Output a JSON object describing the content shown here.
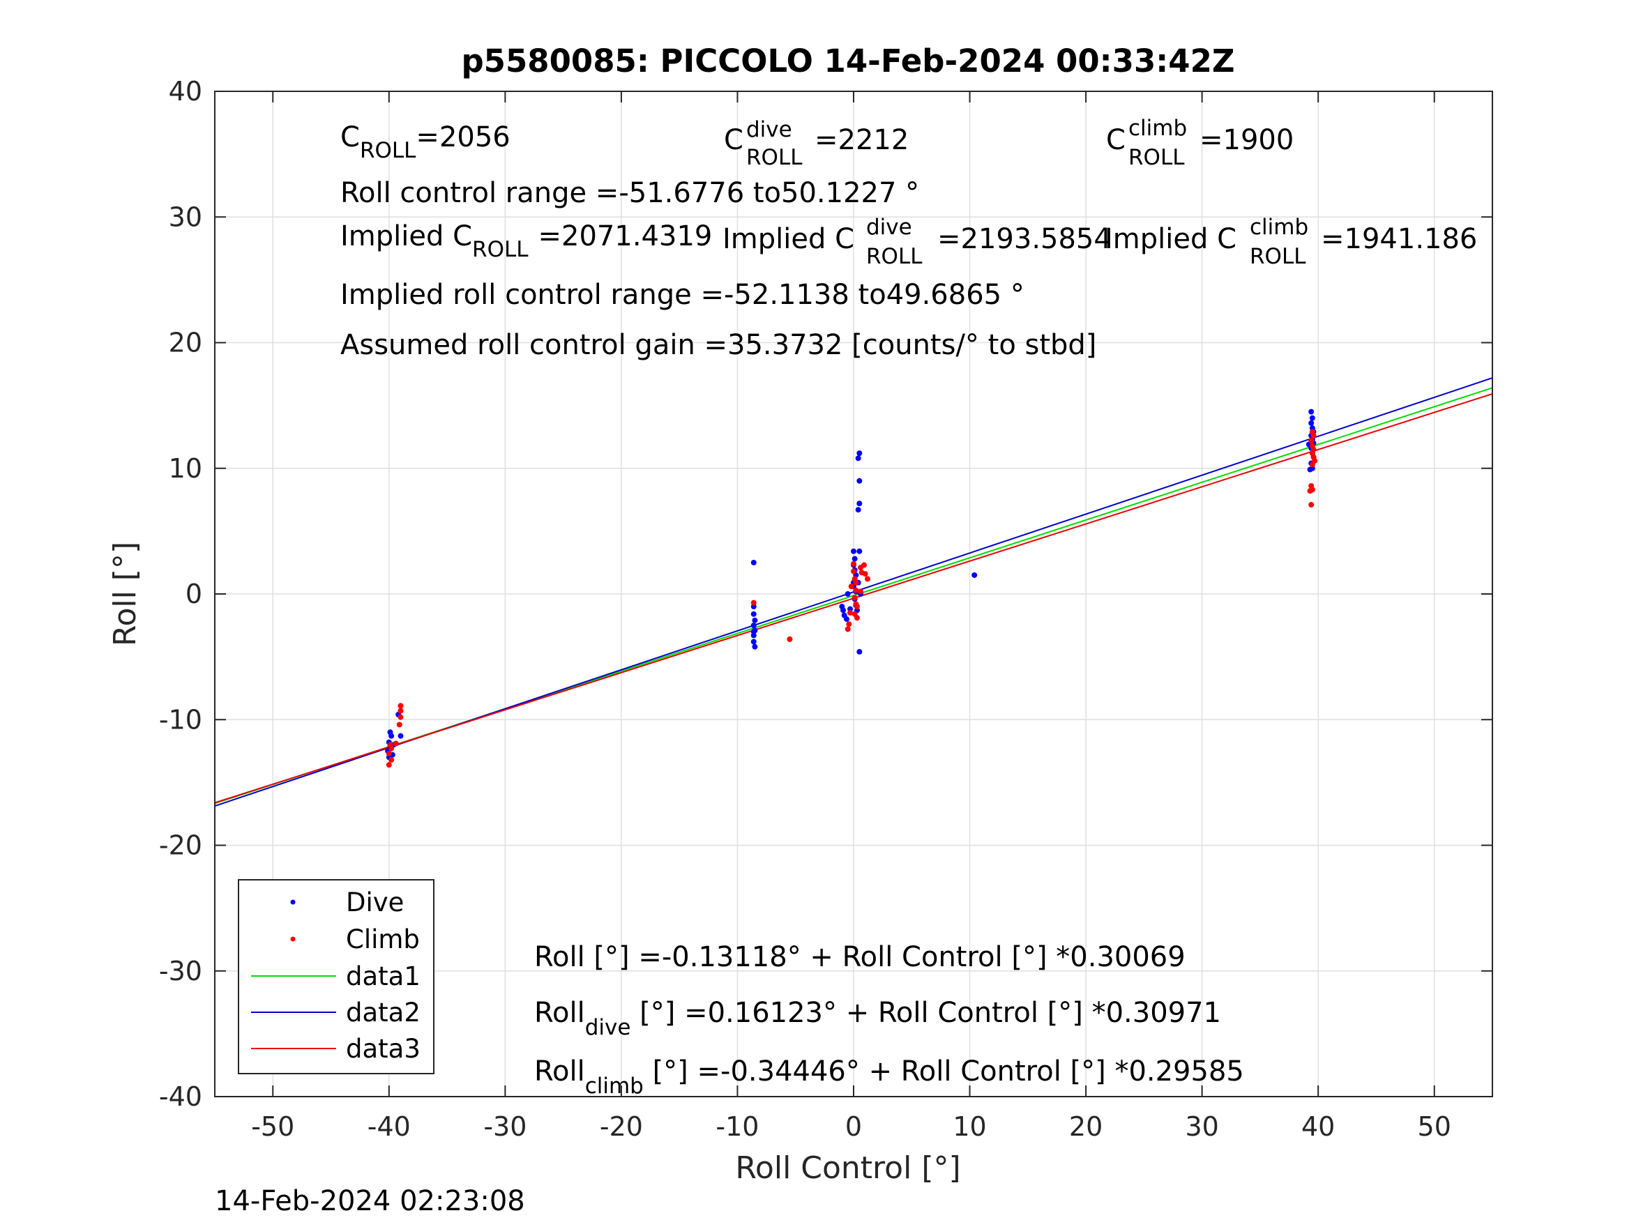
{
  "chart_data": {
    "type": "scatter",
    "title": "p5580085: PICCOLO 14-Feb-2024 00:33:42Z",
    "xlabel": "Roll Control [°]",
    "ylabel": "Roll [°]",
    "xlim": [
      -55,
      55
    ],
    "ylim": [
      -40,
      40
    ],
    "xticks": [
      "-50",
      "-40",
      "-30",
      "-20",
      "-10",
      "0",
      "10",
      "20",
      "30",
      "40",
      "50"
    ],
    "yticks": [
      "40",
      "30",
      "20",
      "10",
      "0",
      "-10",
      "-20",
      "-30",
      "-40"
    ],
    "grid": true,
    "legend_position": "bottom-left",
    "timestamp": "14-Feb-2024 02:23:08",
    "colors": {
      "dive": "#0000ff",
      "climb": "#ff0000",
      "data1": "#00dd00",
      "data2": "#0000cc",
      "data3": "#ee0000"
    },
    "series": [
      {
        "name": "Dive",
        "kind": "points",
        "color": "#0000ff",
        "points": [
          [
            -39.9,
            -11.0
          ],
          [
            -39.8,
            -11.3
          ],
          [
            -40.0,
            -11.8
          ],
          [
            -39.9,
            -12.2
          ],
          [
            -40.1,
            -12.5
          ],
          [
            -39.7,
            -12.8
          ],
          [
            -40.0,
            -13.0
          ],
          [
            -39.2,
            -9.6
          ],
          [
            -39.0,
            -11.3
          ],
          [
            -39.6,
            -12.0
          ],
          [
            -8.6,
            2.5
          ],
          [
            -8.6,
            -1.0
          ],
          [
            -8.6,
            -1.6
          ],
          [
            -8.5,
            -2.1
          ],
          [
            -8.6,
            -2.5
          ],
          [
            -8.5,
            -2.9
          ],
          [
            -8.6,
            -3.3
          ],
          [
            -8.6,
            -3.8
          ],
          [
            -8.5,
            -4.2
          ],
          [
            -8.6,
            -3.0
          ],
          [
            -1.0,
            -1.0
          ],
          [
            -0.9,
            -1.3
          ],
          [
            -0.8,
            -1.7
          ],
          [
            -0.6,
            -2.0
          ],
          [
            -0.5,
            0.0
          ],
          [
            -0.3,
            -1.2
          ],
          [
            0.0,
            3.4
          ],
          [
            0.0,
            2.3
          ],
          [
            0.1,
            1.9
          ],
          [
            0.2,
            1.5
          ],
          [
            0.1,
            1.1
          ],
          [
            0.0,
            0.6
          ],
          [
            0.2,
            0.2
          ],
          [
            0.1,
            -0.4
          ],
          [
            0.2,
            -0.9
          ],
          [
            0.3,
            -1.3
          ],
          [
            0.1,
            2.8
          ],
          [
            0.0,
            0.9
          ],
          [
            0.5,
            11.2
          ],
          [
            0.4,
            10.8
          ],
          [
            0.5,
            9.0
          ],
          [
            0.5,
            7.2
          ],
          [
            0.4,
            6.7
          ],
          [
            0.5,
            3.4
          ],
          [
            0.4,
            0.9
          ],
          [
            0.5,
            -4.6
          ],
          [
            0.6,
            0.0
          ],
          [
            10.4,
            1.5
          ],
          [
            39.2,
            11.9
          ],
          [
            39.4,
            14.5
          ],
          [
            39.5,
            14.0
          ],
          [
            39.4,
            13.6
          ],
          [
            39.5,
            13.2
          ],
          [
            39.6,
            12.9
          ],
          [
            39.4,
            12.6
          ],
          [
            39.5,
            12.3
          ],
          [
            39.6,
            12.0
          ],
          [
            39.4,
            11.6
          ],
          [
            39.5,
            11.2
          ],
          [
            39.6,
            10.9
          ],
          [
            39.4,
            10.4
          ],
          [
            39.5,
            10.0
          ],
          [
            39.3,
            9.9
          ]
        ]
      },
      {
        "name": "Climb",
        "kind": "points",
        "color": "#ff0000",
        "points": [
          [
            -39.0,
            -8.9
          ],
          [
            -39.0,
            -9.3
          ],
          [
            -39.0,
            -9.8
          ],
          [
            -39.1,
            -10.4
          ],
          [
            -39.4,
            -11.9
          ],
          [
            -39.8,
            -12.3
          ],
          [
            -40.0,
            -12.7
          ],
          [
            -39.8,
            -13.2
          ],
          [
            -40.0,
            -13.6
          ],
          [
            -39.9,
            -12.0
          ],
          [
            -8.6,
            -0.7
          ],
          [
            -5.5,
            -3.6
          ],
          [
            -0.5,
            -2.8
          ],
          [
            -0.4,
            -2.4
          ],
          [
            -0.3,
            -1.5
          ],
          [
            -0.2,
            0.6
          ],
          [
            0.0,
            2.4
          ],
          [
            0.0,
            1.8
          ],
          [
            0.1,
            1.2
          ],
          [
            0.2,
            0.3
          ],
          [
            0.1,
            -0.3
          ],
          [
            0.2,
            -0.8
          ],
          [
            0.1,
            -1.6
          ],
          [
            0.3,
            -1.9
          ],
          [
            0.2,
            0.9
          ],
          [
            0.3,
            -1.0
          ],
          [
            0.6,
            2.1
          ],
          [
            0.7,
            1.7
          ],
          [
            1.0,
            1.6
          ],
          [
            1.2,
            1.2
          ],
          [
            0.9,
            2.3
          ],
          [
            0.6,
            0.2
          ],
          [
            39.4,
            12.2
          ],
          [
            39.5,
            11.8
          ],
          [
            39.6,
            11.5
          ],
          [
            39.5,
            11.2
          ],
          [
            39.6,
            10.9
          ],
          [
            39.7,
            10.6
          ],
          [
            39.5,
            10.3
          ],
          [
            39.6,
            12.6
          ],
          [
            39.5,
            12.9
          ],
          [
            39.4,
            8.6
          ],
          [
            39.5,
            8.3
          ],
          [
            39.3,
            8.2
          ],
          [
            39.4,
            7.1
          ]
        ]
      },
      {
        "name": "data1",
        "kind": "line",
        "color": "#00dd00",
        "x": [
          -55,
          55
        ],
        "y": [
          -16.669,
          16.407
        ]
      },
      {
        "name": "data2",
        "kind": "line",
        "color": "#0000cc",
        "x": [
          -55,
          55
        ],
        "y": [
          -16.873,
          17.195
        ]
      },
      {
        "name": "data3",
        "kind": "line",
        "color": "#ee0000",
        "x": [
          -55,
          55
        ],
        "y": [
          -16.616,
          15.928
        ]
      }
    ],
    "legend": [
      "Dive",
      "Climb",
      "data1",
      "data2",
      "data3"
    ]
  },
  "annotations": {
    "c_roll": {
      "base": "C",
      "sub": "ROLL",
      "value": "=2056"
    },
    "c_roll_dive": {
      "base": "C",
      "sup": "dive",
      "sub": "ROLL",
      "value": "=2212"
    },
    "c_roll_climb": {
      "base": "C",
      "sup": "climb",
      "sub": "ROLL",
      "value": "=1900"
    },
    "roll_range": "Roll control range =-51.6776 to50.1227 °",
    "implied_c_roll": {
      "prefix": "Implied C",
      "sub": "ROLL",
      "value": "=2071.4319"
    },
    "implied_c_roll_dive": {
      "prefix": "Implied C",
      "sup": "dive",
      "sub": "ROLL",
      "value": "=2193.5854"
    },
    "implied_c_roll_climb": {
      "prefix": "Implied C",
      "sup": "climb",
      "sub": "ROLL",
      "value": "=1941.186"
    },
    "implied_range": "Implied roll control range =-52.1138 to49.6865 °",
    "gain": "Assumed roll control gain =35.3732 [counts/° to stbd]",
    "fit_all": "Roll [°] =-0.13118° + Roll Control [°] *0.30069",
    "fit_dive": {
      "base": "Roll",
      "sub": "dive",
      "value": " [°] =0.16123° + Roll Control [°] *0.30971"
    },
    "fit_climb": {
      "base": "Roll",
      "sub": "climb",
      "value": " [°] =-0.34446° + Roll Control [°] *0.29585"
    }
  }
}
